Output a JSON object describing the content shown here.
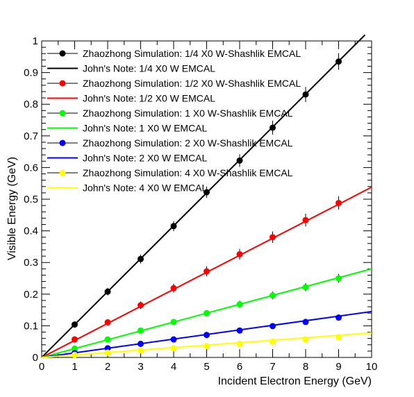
{
  "chart_data": {
    "type": "scatter",
    "xlabel": "Incident Electron Energy (GeV)",
    "ylabel": "Visible Energy (GeV)",
    "xlim": [
      0,
      10
    ],
    "ylim": [
      0,
      1
    ],
    "x_ticks": [
      "0",
      "1",
      "2",
      "3",
      "4",
      "5",
      "6",
      "7",
      "8",
      "9",
      "10"
    ],
    "y_ticks": [
      "0",
      "0.1",
      "0.2",
      "0.3",
      "0.4",
      "0.5",
      "0.6",
      "0.7",
      "0.8",
      "0.9",
      "1"
    ],
    "grid": false,
    "legend_position": "top-left",
    "x": [
      1,
      2,
      3,
      4,
      5,
      6,
      7,
      8,
      9
    ],
    "series": [
      {
        "name": "Zhaozhong Simulation: 1/4 X0 W-Shashlik EMCAL",
        "kind": "points",
        "color": "#000000",
        "values": [
          0.104,
          0.208,
          0.311,
          0.415,
          0.522,
          0.622,
          0.726,
          0.831,
          0.935
        ],
        "errors": [
          0.01,
          0.012,
          0.014,
          0.016,
          0.018,
          0.02,
          0.022,
          0.024,
          0.026
        ]
      },
      {
        "name": "John's Note: 1/4 X0 W EMCAL",
        "kind": "line",
        "color": "#000000",
        "slope": 0.104,
        "x_end": 9.8
      },
      {
        "name": "Zhaozhong Simulation: 1/2 X0 W-Shashlik EMCAL",
        "kind": "points",
        "color": "#ff0000",
        "values": [
          0.057,
          0.111,
          0.165,
          0.219,
          0.272,
          0.326,
          0.38,
          0.434,
          0.488
        ],
        "errors": [
          0.008,
          0.01,
          0.012,
          0.014,
          0.016,
          0.017,
          0.018,
          0.02,
          0.021
        ]
      },
      {
        "name": "John's Note: 1/2 X0 W EMCAL",
        "kind": "line",
        "color": "#ff0000",
        "slope": 0.0538,
        "x_end": 10
      },
      {
        "name": "Zhaozhong Simulation: 1 X0 W-Shashlik EMCAL",
        "kind": "points",
        "color": "#00ff00",
        "values": [
          0.028,
          0.057,
          0.085,
          0.112,
          0.14,
          0.168,
          0.196,
          0.222,
          0.25
        ],
        "errors": [
          0.006,
          0.007,
          0.008,
          0.009,
          0.01,
          0.011,
          0.012,
          0.013,
          0.014
        ]
      },
      {
        "name": "John's Note: 1 X0 W EMCAL",
        "kind": "line",
        "color": "#00ff00",
        "slope": 0.028,
        "x_end": 10
      },
      {
        "name": "Zhaozhong Simulation: 2 X0 W-Shashlik EMCAL",
        "kind": "points",
        "color": "#0000ff",
        "values": [
          0.014,
          0.029,
          0.043,
          0.057,
          0.071,
          0.085,
          0.099,
          0.112,
          0.126
        ],
        "errors": [
          0.004,
          0.004,
          0.005,
          0.005,
          0.006,
          0.006,
          0.007,
          0.007,
          0.008
        ]
      },
      {
        "name": "John's Note: 2 X0 W EMCAL",
        "kind": "line",
        "color": "#0000ff",
        "slope": 0.0145,
        "x_end": 10
      },
      {
        "name": "Zhaozhong Simulation: 4 X0 W-Shashlik EMCAL",
        "kind": "points",
        "color": "#ffff00",
        "values": [
          0.008,
          0.015,
          0.022,
          0.029,
          0.036,
          0.043,
          0.05,
          0.057,
          0.064
        ],
        "errors": [
          0.003,
          0.003,
          0.003,
          0.004,
          0.004,
          0.004,
          0.005,
          0.005,
          0.005
        ]
      },
      {
        "name": "John's Note: 4 X0 W EMCAL",
        "kind": "line",
        "color": "#ffff00",
        "slope": 0.0078,
        "x_end": 10
      }
    ]
  }
}
